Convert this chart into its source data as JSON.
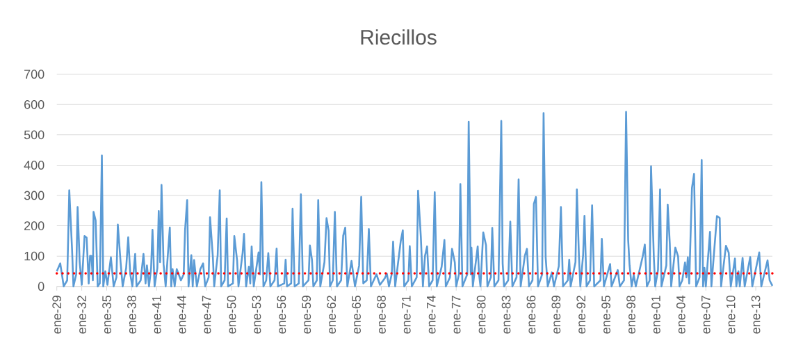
{
  "chart_data": {
    "type": "line",
    "title": "Riecillos",
    "x": [
      "1929-01",
      "1929-06",
      "1929-11",
      "1930-04",
      "1930-07",
      "1930-11",
      "1931-01",
      "1931-05",
      "1931-07",
      "1931-10",
      "1932-01",
      "1932-05",
      "1932-08",
      "1932-11",
      "1933-01",
      "1933-03",
      "1933-05",
      "1933-06",
      "1933-09",
      "1933-12",
      "1934-03",
      "1934-06",
      "1934-08",
      "1934-11",
      "1935-02",
      "1935-07",
      "1935-11",
      "1936-03",
      "1936-05",
      "1936-09",
      "1936-12",
      "1937-05",
      "1937-08",
      "1937-11",
      "1938-02",
      "1938-06",
      "1938-08",
      "1939-02",
      "1939-06",
      "1939-09",
      "1939-11",
      "1940-02",
      "1940-05",
      "1940-07",
      "1940-10",
      "1941-02",
      "1941-04",
      "1941-06",
      "1941-08",
      "1941-11",
      "1942-02",
      "1942-05",
      "1942-08",
      "1942-10",
      "1942-12",
      "1943-03",
      "1943-06",
      "1943-12",
      "1944-04",
      "1944-06",
      "1944-09",
      "1944-11",
      "1945-03",
      "1945-05",
      "1945-07",
      "1945-11",
      "1946-04",
      "1946-08",
      "1946-11",
      "1947-04",
      "1947-06",
      "1947-10",
      "1947-12",
      "1948-05",
      "1948-08",
      "1948-10",
      "1949-03",
      "1949-06",
      "1949-08",
      "1950-03",
      "1950-05",
      "1950-09",
      "1950-11",
      "1951-05",
      "1951-07",
      "1951-10",
      "1952-02",
      "1952-04",
      "1952-06",
      "1952-09",
      "1953-04",
      "1953-06",
      "1953-08",
      "1953-11",
      "1954-03",
      "1954-06",
      "1954-09",
      "1955-03",
      "1955-06",
      "1955-08",
      "1956-05",
      "1956-07",
      "1956-09",
      "1957-03",
      "1957-05",
      "1957-08",
      "1958-02",
      "1958-05",
      "1958-08",
      "1959-04",
      "1959-06",
      "1959-09",
      "1959-11",
      "1960-04",
      "1960-06",
      "1960-09",
      "1961-03",
      "1961-06",
      "1961-09",
      "1961-11",
      "1962-03",
      "1962-06",
      "1962-09",
      "1963-03",
      "1963-06",
      "1963-09",
      "1963-12",
      "1964-06",
      "1964-11",
      "1965-05",
      "1965-08",
      "1965-11",
      "1966-04",
      "1966-07",
      "1966-10",
      "1967-06",
      "1967-11",
      "1968-06",
      "1968-09",
      "1968-12",
      "1969-04",
      "1969-06",
      "1969-09",
      "1970-05",
      "1970-08",
      "1970-10",
      "1971-04",
      "1971-06",
      "1971-09",
      "1972-04",
      "1972-06",
      "1972-10",
      "1973-01",
      "1973-04",
      "1973-07",
      "1973-10",
      "1974-03",
      "1974-06",
      "1974-09",
      "1975-04",
      "1975-08",
      "1975-10",
      "1976-04",
      "1976-07",
      "1976-11",
      "1977-01",
      "1977-05",
      "1977-07",
      "1977-10",
      "1978-05",
      "1978-07",
      "1978-10",
      "1978-11",
      "1979-01",
      "1979-08",
      "1979-10",
      "1979-12",
      "1980-04",
      "1980-08",
      "1980-10",
      "1981-03",
      "1981-05",
      "1981-08",
      "1982-02",
      "1982-06",
      "1982-08",
      "1982-10",
      "1983-04",
      "1983-07",
      "1983-10",
      "1984-04",
      "1984-07",
      "1984-10",
      "1985-04",
      "1985-07",
      "1985-10",
      "1986-03",
      "1986-05",
      "1986-08",
      "1986-11",
      "1987-05",
      "1987-07",
      "1987-10",
      "1988-01",
      "1988-07",
      "1988-10",
      "1989-05",
      "1989-08",
      "1989-11",
      "1990-06",
      "1990-08",
      "1990-10",
      "1991-05",
      "1991-07",
      "1991-10",
      "1991-12",
      "1992-04",
      "1992-06",
      "1992-09",
      "1993-02",
      "1993-05",
      "1993-08",
      "1994-05",
      "1994-07",
      "1994-10",
      "1995-07",
      "1995-09",
      "1996-06",
      "1996-09",
      "1997-03",
      "1997-06",
      "1997-09",
      "1997-11",
      "1998-02",
      "1998-05",
      "1998-08",
      "1999-06",
      "1999-09",
      "1999-12",
      "2000-04",
      "2000-06",
      "2000-10",
      "2000-12",
      "2001-04",
      "2001-07",
      "2001-09",
      "2002-04",
      "2002-06",
      "2002-09",
      "2002-11",
      "2003-05",
      "2003-09",
      "2003-11",
      "2004-03",
      "2004-07",
      "2004-09",
      "2004-11",
      "2005-01",
      "2005-05",
      "2005-08",
      "2005-11",
      "2006-04",
      "2006-07",
      "2006-09",
      "2006-11",
      "2007-01",
      "2007-07",
      "2007-09",
      "2008-05",
      "2008-09",
      "2008-11",
      "2009-06",
      "2009-10",
      "2010-01",
      "2010-07",
      "2010-09",
      "2010-12",
      "2011-02",
      "2011-06",
      "2011-09",
      "2012-05",
      "2012-08",
      "2013-06",
      "2013-09",
      "2014-06",
      "2014-09",
      "2015-01"
    ],
    "values": [
      50,
      76,
      0,
      20,
      317,
      122,
      0,
      40,
      262,
      80,
      5,
      166,
      161,
      10,
      101,
      100,
      20,
      246,
      218,
      0,
      10,
      432,
      0,
      50,
      5,
      96,
      0,
      30,
      204,
      80,
      0,
      60,
      162,
      40,
      0,
      107,
      0,
      20,
      107,
      10,
      69,
      0,
      60,
      187,
      0,
      60,
      249,
      80,
      335,
      73,
      0,
      100,
      194,
      0,
      57,
      0,
      57,
      20,
      40,
      187,
      285,
      0,
      103,
      0,
      87,
      0,
      57,
      76,
      0,
      30,
      228,
      99,
      0,
      103,
      317,
      0,
      20,
      224,
      0,
      10,
      166,
      86,
      0,
      111,
      173,
      0,
      65,
      10,
      132,
      0,
      112,
      40,
      344,
      0,
      20,
      110,
      0,
      20,
      125,
      0,
      10,
      88,
      0,
      10,
      256,
      0,
      10,
      304,
      0,
      20,
      135,
      88,
      0,
      20,
      285,
      0,
      80,
      225,
      184,
      0,
      20,
      246,
      0,
      20,
      167,
      194,
      0,
      84,
      0,
      69,
      295,
      10,
      20,
      189,
      0,
      40,
      5,
      27,
      42,
      0,
      40,
      148,
      0,
      149,
      185,
      0,
      20,
      133,
      0,
      30,
      316,
      163,
      0,
      101,
      132,
      0,
      20,
      311,
      0,
      65,
      153,
      0,
      30,
      124,
      79,
      0,
      40,
      338,
      0,
      40,
      543,
      40,
      128,
      0,
      132,
      38,
      0,
      178,
      136,
      0,
      30,
      193,
      0,
      20,
      546,
      76,
      0,
      20,
      214,
      0,
      30,
      353,
      0,
      101,
      124,
      0,
      20,
      272,
      295,
      0,
      40,
      572,
      96,
      0,
      46,
      0,
      67,
      262,
      0,
      20,
      88,
      0,
      80,
      320,
      99,
      0,
      103,
      233,
      0,
      20,
      268,
      0,
      20,
      157,
      0,
      74,
      0,
      54,
      0,
      20,
      576,
      153,
      70,
      0,
      38,
      0,
      99,
      138,
      0,
      20,
      396,
      96,
      0,
      54,
      320,
      0,
      69,
      270,
      142,
      0,
      128,
      99,
      0,
      20,
      79,
      30,
      96,
      10,
      325,
      371,
      0,
      30,
      417,
      0,
      61,
      0,
      180,
      0,
      232,
      226,
      0,
      134,
      111,
      0,
      92,
      0,
      50,
      0,
      94,
      0,
      97,
      0,
      112,
      0,
      86,
      20,
      2
    ],
    "color": "#5b9bd5",
    "xlim": [
      "1929-01",
      "2015-01"
    ],
    "ylim": [
      0,
      700
    ],
    "xticks": [
      {
        "value": "1929-01",
        "label": "ene-29"
      },
      {
        "value": "1932-01",
        "label": "ene-32"
      },
      {
        "value": "1935-01",
        "label": "ene-35"
      },
      {
        "value": "1938-01",
        "label": "ene-38"
      },
      {
        "value": "1941-01",
        "label": "ene-41"
      },
      {
        "value": "1944-01",
        "label": "ene-44"
      },
      {
        "value": "1947-01",
        "label": "ene-47"
      },
      {
        "value": "1950-01",
        "label": "ene-50"
      },
      {
        "value": "1953-01",
        "label": "ene-53"
      },
      {
        "value": "1956-01",
        "label": "ene-56"
      },
      {
        "value": "1959-01",
        "label": "ene-59"
      },
      {
        "value": "1962-01",
        "label": "ene-62"
      },
      {
        "value": "1965-01",
        "label": "ene-65"
      },
      {
        "value": "1968-01",
        "label": "ene-68"
      },
      {
        "value": "1971-01",
        "label": "ene-71"
      },
      {
        "value": "1974-01",
        "label": "ene-74"
      },
      {
        "value": "1977-01",
        "label": "ene-77"
      },
      {
        "value": "1980-01",
        "label": "ene-80"
      },
      {
        "value": "1983-01",
        "label": "ene-83"
      },
      {
        "value": "1986-01",
        "label": "ene-86"
      },
      {
        "value": "1989-01",
        "label": "ene-89"
      },
      {
        "value": "1992-01",
        "label": "ene-92"
      },
      {
        "value": "1995-01",
        "label": "ene-95"
      },
      {
        "value": "1998-01",
        "label": "ene-98"
      },
      {
        "value": "2001-01",
        "label": "ene-01"
      },
      {
        "value": "2004-01",
        "label": "ene-04"
      },
      {
        "value": "2007-01",
        "label": "ene-07"
      },
      {
        "value": "2010-01",
        "label": "ene-10"
      },
      {
        "value": "2013-01",
        "label": "ene-13"
      }
    ],
    "yticks": [
      0,
      100,
      200,
      300,
      400,
      500,
      600,
      700
    ],
    "grid": "y",
    "ref_lines": [
      {
        "axis": "y",
        "value": 43,
        "color": "#ff0000",
        "line_style": "dotted"
      }
    ]
  }
}
